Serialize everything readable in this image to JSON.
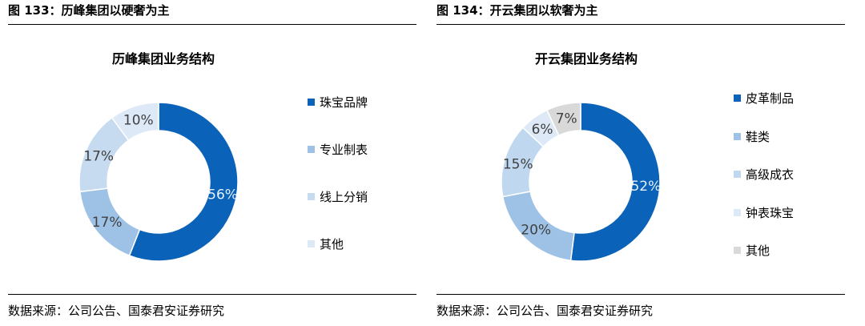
{
  "left": {
    "figure_title": "图 133：历峰集团以硬奢为主",
    "source": "数据来源：公司公告、国泰君安证券研究"
  },
  "right": {
    "figure_title": "图 134：开云集团以软奢为主",
    "source": "数据来源：公司公告、国泰君安证券研究"
  },
  "chart_data": [
    {
      "type": "pie",
      "title": "历峰集团业务结构",
      "categories": [
        "珠宝品牌",
        "专业制表",
        "线上分销",
        "其他"
      ],
      "values": [
        56,
        17,
        17,
        10
      ],
      "value_labels": [
        "56%",
        "17%",
        "17%",
        "10%"
      ],
      "colors": [
        "#0a63b8",
        "#9ec2e6",
        "#c6dbf0",
        "#dde9f7"
      ],
      "legend_position": "right"
    },
    {
      "type": "pie",
      "title": "开云集团业务结构",
      "categories": [
        "皮革制品",
        "鞋类",
        "高级成衣",
        "钟表珠宝",
        "其他"
      ],
      "values": [
        52,
        20,
        15,
        6,
        7
      ],
      "value_labels": [
        "52%",
        "20%",
        "15%",
        "6%",
        "7%"
      ],
      "colors": [
        "#0a63b8",
        "#9ec2e6",
        "#bfd7ef",
        "#dde9f7",
        "#d9d9d9"
      ],
      "legend_position": "right"
    }
  ]
}
